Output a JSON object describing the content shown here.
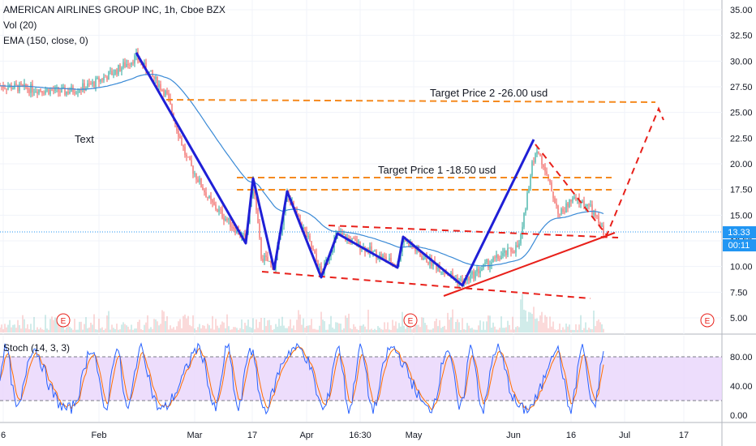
{
  "legend": {
    "symbol": "AMERICAN AIRLINES GROUP INC, 1h, Cboe BZX",
    "volume": "Vol (20)",
    "ema": "EMA (150, close, 0)",
    "stoch": "Stoch (14, 3, 3)"
  },
  "annotations": {
    "target2": "Target Price 2 -26.00 usd",
    "target1": "Target Price 1 -18.50 usd",
    "text_note": "Text"
  },
  "price_axis": {
    "ticks": [
      "35.00",
      "32.50",
      "30.00",
      "27.50",
      "25.00",
      "22.50",
      "20.00",
      "17.50",
      "15.00",
      "12.50",
      "10.00",
      "7.50",
      "5.00"
    ],
    "last_price": "13.33",
    "countdown": "00:11"
  },
  "stoch_axis": {
    "ticks": [
      "80.00",
      "40.00",
      "0.00"
    ]
  },
  "time_axis": {
    "labels": [
      "6",
      "Feb",
      "Mar",
      "17",
      "Apr",
      "16:30",
      "May",
      "Jun",
      "16",
      "Jul",
      "17"
    ]
  },
  "earnings_markers": [
    "E",
    "E",
    "E"
  ],
  "colors": {
    "candle_up": "#26a69a",
    "candle_down": "#ef5350",
    "wave_line": "#1f1fd6",
    "trend_red": "#e8201a",
    "target_orange": "#f58a1f",
    "ema": "#3a8ad6",
    "stoch_k": "#2962ff",
    "stoch_d": "#ff6d00",
    "stoch_band": "#e9d4fb",
    "price_badge": "#2196f3"
  }
}
